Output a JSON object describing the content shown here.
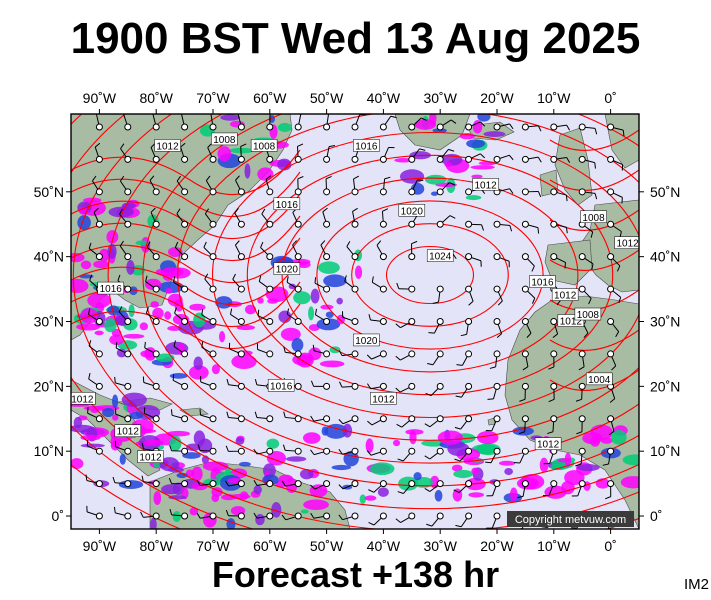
{
  "title": "1900 BST Wed 13 Aug 2025",
  "footer": "Forecast +138 hr",
  "product_code": "IM2",
  "copyright": "Copyright metvuw.com",
  "map": {
    "lon_range": [
      -95,
      5
    ],
    "lat_range": [
      -2,
      62
    ],
    "longitude_ticks": [
      {
        "value": -90,
        "label": "90˚W"
      },
      {
        "value": -80,
        "label": "80˚W"
      },
      {
        "value": -70,
        "label": "70˚W"
      },
      {
        "value": -60,
        "label": "60˚W"
      },
      {
        "value": -50,
        "label": "50˚W"
      },
      {
        "value": -40,
        "label": "40˚W"
      },
      {
        "value": -30,
        "label": "30˚W"
      },
      {
        "value": -20,
        "label": "20˚W"
      },
      {
        "value": -10,
        "label": "10˚W"
      },
      {
        "value": 0,
        "label": "0˚"
      }
    ],
    "latitude_ticks": [
      {
        "value": 50,
        "label": "50˚N"
      },
      {
        "value": 40,
        "label": "40˚N"
      },
      {
        "value": 30,
        "label": "30˚N"
      },
      {
        "value": 20,
        "label": "20˚N"
      },
      {
        "value": 10,
        "label": "10˚N"
      },
      {
        "value": 0,
        "label": "0˚"
      }
    ],
    "isobar_labels": [
      {
        "text": "1012",
        "lon": -78,
        "lat": 57
      },
      {
        "text": "1008",
        "lon": -68,
        "lat": 58
      },
      {
        "text": "1008",
        "lon": -61,
        "lat": 57
      },
      {
        "text": "1016",
        "lon": -43,
        "lat": 57
      },
      {
        "text": "1012",
        "lon": -22,
        "lat": 51
      },
      {
        "text": "1016",
        "lon": -57,
        "lat": 48
      },
      {
        "text": "1020",
        "lon": -35,
        "lat": 47
      },
      {
        "text": "1008",
        "lon": -3,
        "lat": 46
      },
      {
        "text": "1024",
        "lon": -30,
        "lat": 40
      },
      {
        "text": "1012",
        "lon": 3,
        "lat": 42
      },
      {
        "text": "1020",
        "lon": -57,
        "lat": 38
      },
      {
        "text": "1016",
        "lon": -88,
        "lat": 35
      },
      {
        "text": "1016",
        "lon": -12,
        "lat": 36
      },
      {
        "text": "1012",
        "lon": -8,
        "lat": 34
      },
      {
        "text": "1012",
        "lon": -7,
        "lat": 30
      },
      {
        "text": "1008",
        "lon": -4,
        "lat": 31
      },
      {
        "text": "1020",
        "lon": -43,
        "lat": 27
      },
      {
        "text": "1016",
        "lon": -58,
        "lat": 20
      },
      {
        "text": "1012",
        "lon": -40,
        "lat": 18
      },
      {
        "text": "1004",
        "lon": -2,
        "lat": 21
      },
      {
        "text": "1012",
        "lon": -93,
        "lat": 18
      },
      {
        "text": "1012",
        "lon": -85,
        "lat": 13
      },
      {
        "text": "1012",
        "lon": -81,
        "lat": 9
      },
      {
        "text": "1012",
        "lon": -11,
        "lat": 11
      }
    ],
    "colors": {
      "ocean": "#e4e4f8",
      "land": "#a7bca3",
      "isobar": "#ff0000",
      "precip_light": "#ff00ff",
      "precip_medium": "#8a20e0",
      "precip_heavy": "#2244dd",
      "precip_core": "#00cc77",
      "wind_barb": "#000000"
    }
  }
}
